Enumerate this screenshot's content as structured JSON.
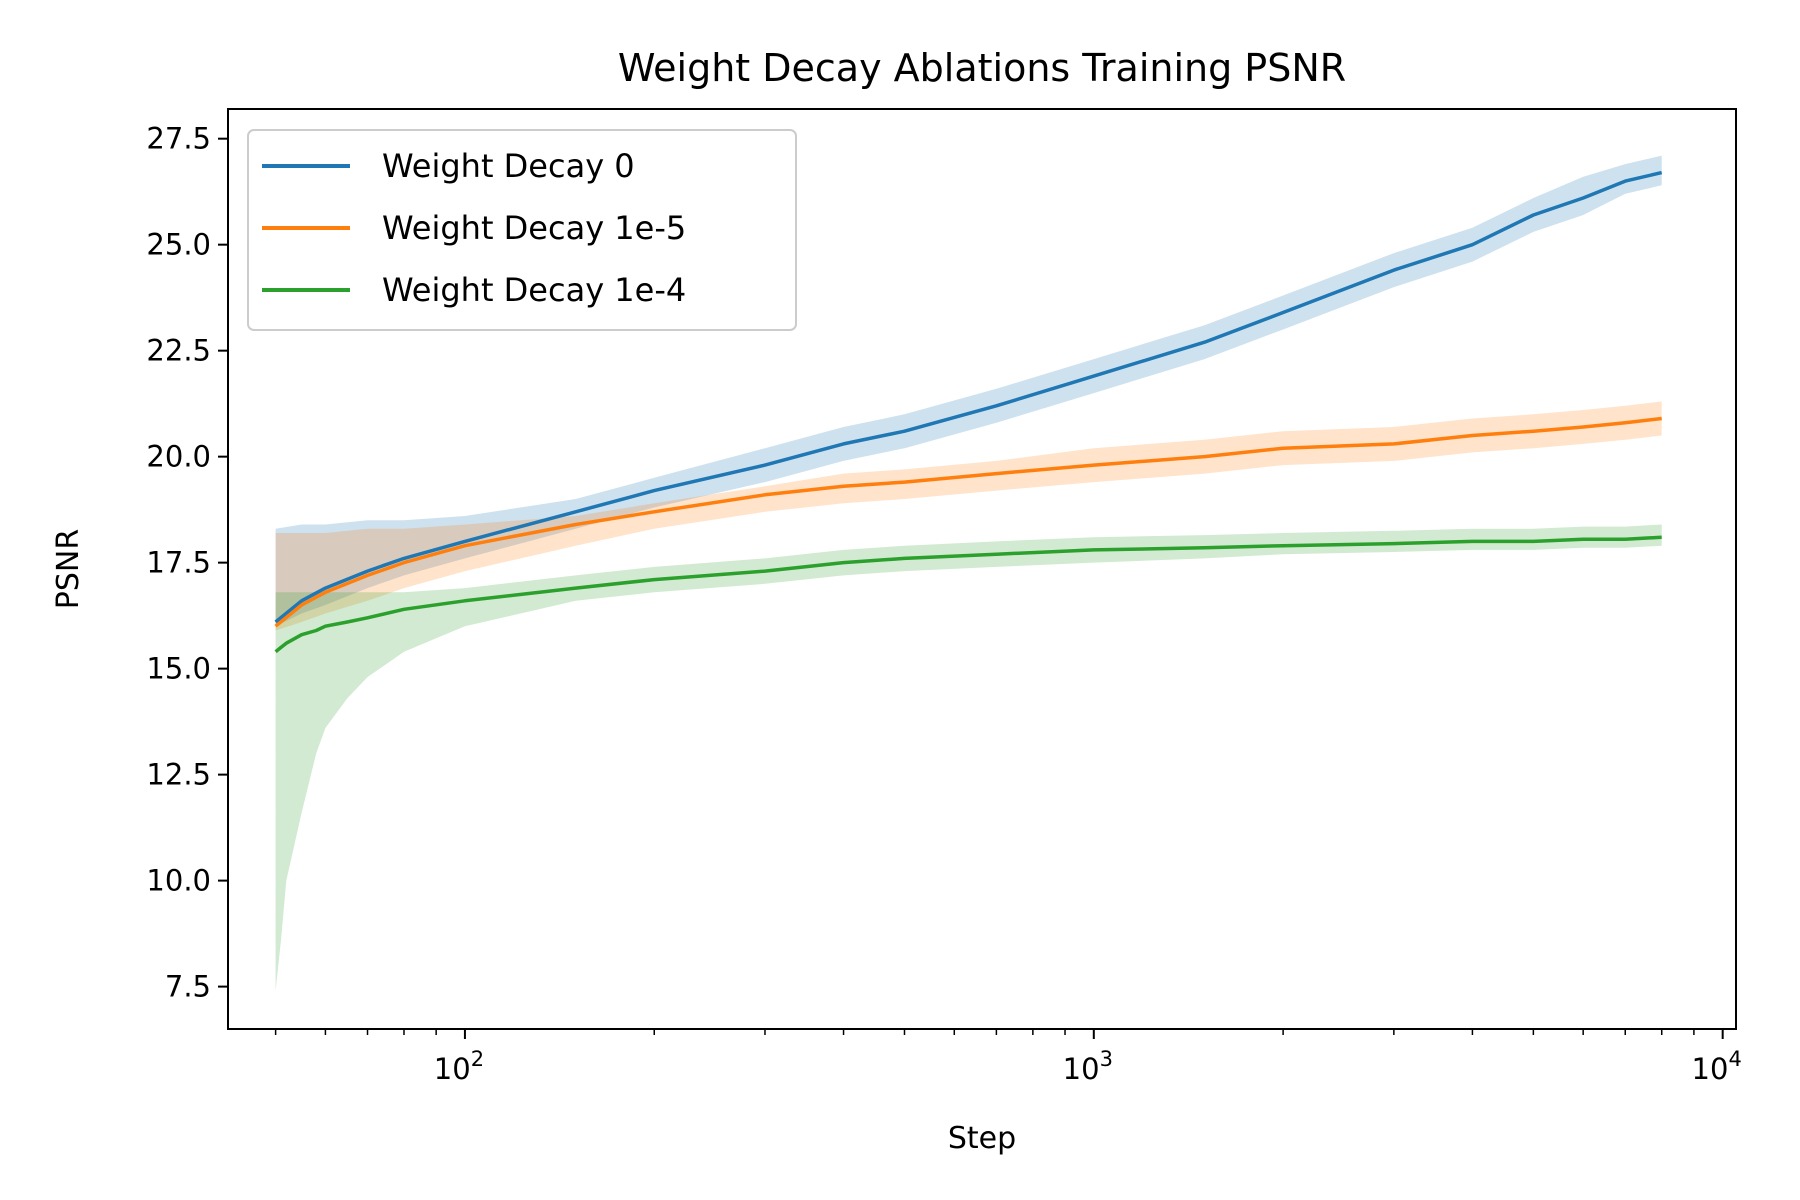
{
  "chart_data": {
    "type": "line",
    "title": "Weight Decay Ablations Training PSNR",
    "xlabel": "Step",
    "ylabel": "PSNR",
    "x_scale": "log",
    "xlim": [
      42,
      10500
    ],
    "ylim": [
      6.5,
      28.2
    ],
    "x_ticks": [
      {
        "value": 100,
        "base": "10",
        "exp": "2"
      },
      {
        "value": 1000,
        "base": "10",
        "exp": "3"
      },
      {
        "value": 10000,
        "base": "10",
        "exp": "4"
      }
    ],
    "y_ticks": [
      7.5,
      10.0,
      12.5,
      15.0,
      17.5,
      20.0,
      22.5,
      25.0,
      27.5
    ],
    "y_tick_labels": [
      "7.5",
      "10.0",
      "12.5",
      "15.0",
      "17.5",
      "20.0",
      "22.5",
      "25.0",
      "27.5"
    ],
    "grid": false,
    "legend_position": "top-left",
    "series": [
      {
        "name": "Weight Decay 0",
        "color": "#1f77b4",
        "x": [
          50,
          55,
          60,
          70,
          80,
          100,
          150,
          200,
          300,
          400,
          500,
          700,
          1000,
          1500,
          2000,
          3000,
          4000,
          5000,
          6000,
          7000,
          8000
        ],
        "y": [
          16.1,
          16.6,
          16.9,
          17.3,
          17.6,
          18.0,
          18.7,
          19.2,
          19.8,
          20.3,
          20.6,
          21.2,
          21.9,
          22.7,
          23.4,
          24.4,
          25.0,
          25.7,
          26.1,
          26.5,
          26.7
        ],
        "lower": [
          16.0,
          16.3,
          16.5,
          16.9,
          17.2,
          17.6,
          18.3,
          18.8,
          19.4,
          19.9,
          20.2,
          20.8,
          21.5,
          22.3,
          23.0,
          24.0,
          24.6,
          25.3,
          25.7,
          26.2,
          26.4
        ],
        "upper": [
          18.3,
          18.4,
          18.4,
          18.5,
          18.5,
          18.6,
          19.0,
          19.5,
          20.2,
          20.7,
          21.0,
          21.6,
          22.3,
          23.1,
          23.8,
          24.8,
          25.4,
          26.1,
          26.6,
          26.9,
          27.1
        ]
      },
      {
        "name": "Weight Decay 1e-5",
        "color": "#ff7f0e",
        "x": [
          50,
          55,
          60,
          70,
          80,
          100,
          150,
          200,
          300,
          400,
          500,
          700,
          1000,
          1500,
          2000,
          3000,
          4000,
          5000,
          6000,
          7000,
          8000
        ],
        "y": [
          16.0,
          16.5,
          16.8,
          17.2,
          17.5,
          17.9,
          18.4,
          18.7,
          19.1,
          19.3,
          19.4,
          19.6,
          19.8,
          20.0,
          20.2,
          20.3,
          20.5,
          20.6,
          20.7,
          20.8,
          20.9
        ],
        "lower": [
          15.9,
          16.1,
          16.3,
          16.6,
          16.9,
          17.3,
          17.9,
          18.3,
          18.7,
          18.9,
          19.0,
          19.2,
          19.4,
          19.6,
          19.8,
          19.9,
          20.1,
          20.2,
          20.3,
          20.4,
          20.5
        ],
        "upper": [
          18.2,
          18.2,
          18.2,
          18.3,
          18.3,
          18.4,
          18.6,
          18.9,
          19.3,
          19.6,
          19.7,
          19.9,
          20.2,
          20.4,
          20.6,
          20.7,
          20.9,
          21.0,
          21.1,
          21.2,
          21.3
        ]
      },
      {
        "name": "Weight Decay 1e-4",
        "color": "#2ca02c",
        "x": [
          50,
          51,
          52,
          55,
          58,
          60,
          65,
          70,
          80,
          100,
          150,
          200,
          300,
          400,
          500,
          700,
          1000,
          1500,
          2000,
          3000,
          4000,
          5000,
          6000,
          7000,
          8000
        ],
        "y": [
          15.4,
          15.5,
          15.6,
          15.8,
          15.9,
          16.0,
          16.1,
          16.2,
          16.4,
          16.6,
          16.9,
          17.1,
          17.3,
          17.5,
          17.6,
          17.7,
          17.8,
          17.85,
          17.9,
          17.95,
          18.0,
          18.0,
          18.05,
          18.05,
          18.1
        ],
        "lower": [
          7.4,
          8.6,
          10.0,
          11.6,
          13.0,
          13.6,
          14.3,
          14.8,
          15.4,
          16.0,
          16.6,
          16.8,
          17.0,
          17.2,
          17.3,
          17.4,
          17.5,
          17.6,
          17.7,
          17.75,
          17.8,
          17.8,
          17.85,
          17.85,
          17.9
        ],
        "upper": [
          16.8,
          16.8,
          16.8,
          16.8,
          16.8,
          16.8,
          16.8,
          16.8,
          16.8,
          16.9,
          17.2,
          17.4,
          17.6,
          17.8,
          17.9,
          18.0,
          18.1,
          18.15,
          18.2,
          18.25,
          18.3,
          18.3,
          18.35,
          18.35,
          18.4
        ]
      }
    ]
  }
}
